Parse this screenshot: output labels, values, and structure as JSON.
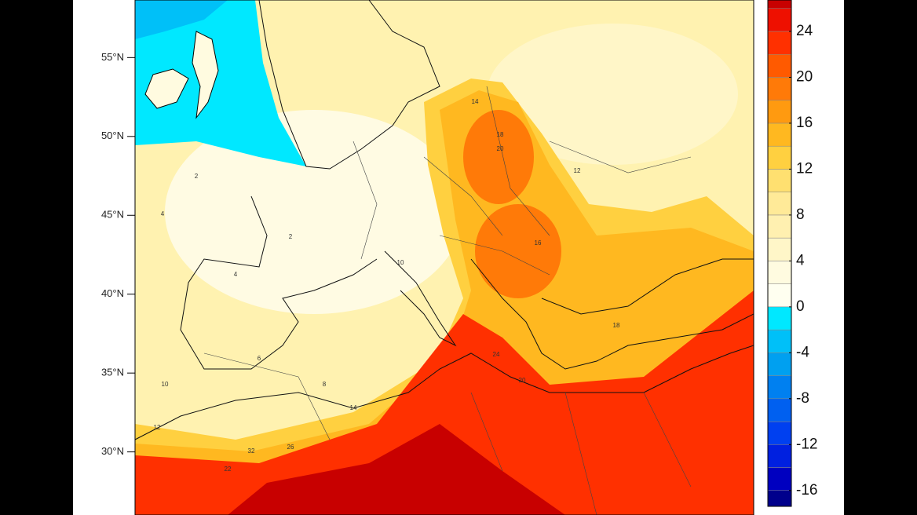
{
  "map": {
    "lat_axis": {
      "range": [
        26,
        58.65
      ],
      "ticks": [
        {
          "value": 55,
          "label": "55°N"
        },
        {
          "value": 50,
          "label": "50°N"
        },
        {
          "value": 45,
          "label": "45°N"
        },
        {
          "value": 40,
          "label": "40°N"
        },
        {
          "value": 35,
          "label": "35°N"
        },
        {
          "value": 30,
          "label": "30°N"
        }
      ]
    },
    "colorbar": {
      "range": [
        -18,
        28
      ],
      "step": 2,
      "ticks": [
        24,
        20,
        16,
        12,
        8,
        4,
        0,
        -4,
        -8,
        -12,
        -16
      ],
      "colors": [
        "#00008c",
        "#0000c0",
        "#0020e0",
        "#0040f0",
        "#0060f0",
        "#0080f0",
        "#00a0f0",
        "#00c0f8",
        "#00e8ff",
        "#fffff0",
        "#fffbe0",
        "#fff6c8",
        "#fff0b0",
        "#ffea98",
        "#ffe070",
        "#ffd040",
        "#ffb820",
        "#ff9a10",
        "#ff7a08",
        "#ff5a00",
        "#ff3000",
        "#ee1000",
        "#c80000"
      ]
    },
    "contour_labels": [
      "14",
      "18",
      "20",
      "12",
      "2",
      "4",
      "4",
      "2",
      "10",
      "8",
      "6",
      "10",
      "16",
      "24",
      "26",
      "22",
      "14",
      "32",
      "12",
      "18",
      "20"
    ]
  }
}
